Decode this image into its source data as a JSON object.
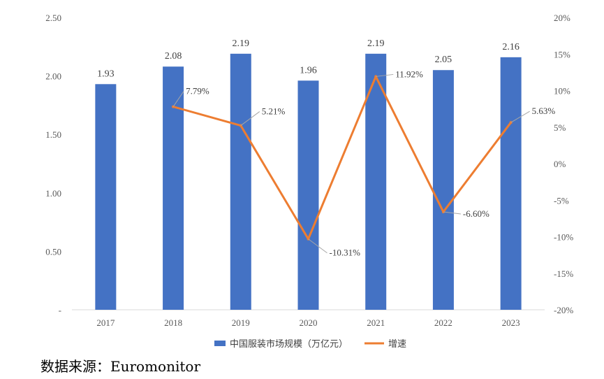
{
  "chart_data": {
    "type": "bar",
    "categories": [
      "2017",
      "2018",
      "2019",
      "2020",
      "2021",
      "2022",
      "2023"
    ],
    "series": [
      {
        "name": "中国服装市场规模（万亿元）",
        "type": "bar",
        "axis": "left",
        "values": [
          1.93,
          2.08,
          2.19,
          1.96,
          2.19,
          2.05,
          2.16
        ],
        "labels": [
          "1.93",
          "2.08",
          "2.19",
          "1.96",
          "2.19",
          "2.05",
          "2.16"
        ],
        "color": "#4472C4"
      },
      {
        "name": "增速",
        "type": "line",
        "axis": "right",
        "values": [
          null,
          7.79,
          5.21,
          -10.31,
          11.92,
          -6.6,
          5.63
        ],
        "labels": [
          "",
          "7.79%",
          "5.21%",
          "-10.31%",
          "11.92%",
          "-6.60%",
          "5.63%"
        ],
        "color": "#ED7D31"
      }
    ],
    "y_left": {
      "ylim": [
        0,
        2.5
      ],
      "ticks": [
        0,
        0.5,
        1.0,
        1.5,
        2.0,
        2.5
      ],
      "tick_labels": [
        "-",
        "0.50",
        "1.00",
        "1.50",
        "2.00",
        "2.50"
      ]
    },
    "y_right": {
      "ylim": [
        -20,
        20
      ],
      "ticks": [
        -20,
        -15,
        -10,
        -5,
        0,
        5,
        10,
        15,
        20
      ],
      "tick_labels": [
        "-20%",
        "-15%",
        "-10%",
        "-5%",
        "0%",
        "5%",
        "10%",
        "15%",
        "20%"
      ]
    },
    "grid": false,
    "legend_position": "bottom"
  },
  "source_text": "数据来源：Euromonitor"
}
